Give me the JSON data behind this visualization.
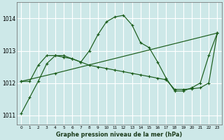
{
  "xlabel": "Graphe pression niveau de la mer (hPa)",
  "x_ticks": [
    0,
    1,
    2,
    3,
    4,
    5,
    6,
    7,
    8,
    9,
    10,
    11,
    12,
    13,
    14,
    15,
    16,
    17,
    18,
    19,
    20,
    21,
    22,
    23
  ],
  "ylim": [
    1010.7,
    1014.5
  ],
  "yticks": [
    1011,
    1012,
    1013,
    1014
  ],
  "background_color": "#cde8e8",
  "grid_color": "#ffffff",
  "line_color": "#1a5c1a",
  "series1_x": [
    0,
    1,
    2,
    3,
    4,
    5,
    6,
    7,
    8,
    9,
    10,
    11,
    12,
    13,
    14,
    15,
    16,
    17,
    18,
    19,
    20,
    21,
    22,
    23
  ],
  "series1_y": [
    1011.05,
    1011.55,
    1012.05,
    1012.6,
    1012.85,
    1012.85,
    1012.75,
    1012.65,
    1013.0,
    1013.5,
    1013.9,
    1014.05,
    1014.1,
    1013.8,
    1013.25,
    1013.1,
    1012.65,
    1012.15,
    1011.75,
    1011.75,
    1011.85,
    1012.0,
    1012.85,
    1013.55
  ],
  "series2_x": [
    0,
    1,
    2,
    3,
    4,
    5,
    6,
    7,
    8,
    9,
    10,
    11,
    12,
    13,
    14,
    15,
    16,
    17,
    18,
    19,
    20,
    21,
    22,
    23
  ],
  "series2_y": [
    1012.05,
    1012.05,
    1012.55,
    1012.85,
    1012.85,
    1012.8,
    1012.75,
    1012.65,
    1012.55,
    1012.5,
    1012.45,
    1012.4,
    1012.35,
    1012.3,
    1012.25,
    1012.2,
    1012.15,
    1012.1,
    1011.8,
    1011.8,
    1011.82,
    1011.85,
    1012.0,
    1013.55
  ],
  "series3_x": [
    0,
    4,
    23
  ],
  "series3_y": [
    1012.05,
    1012.3,
    1013.55
  ]
}
